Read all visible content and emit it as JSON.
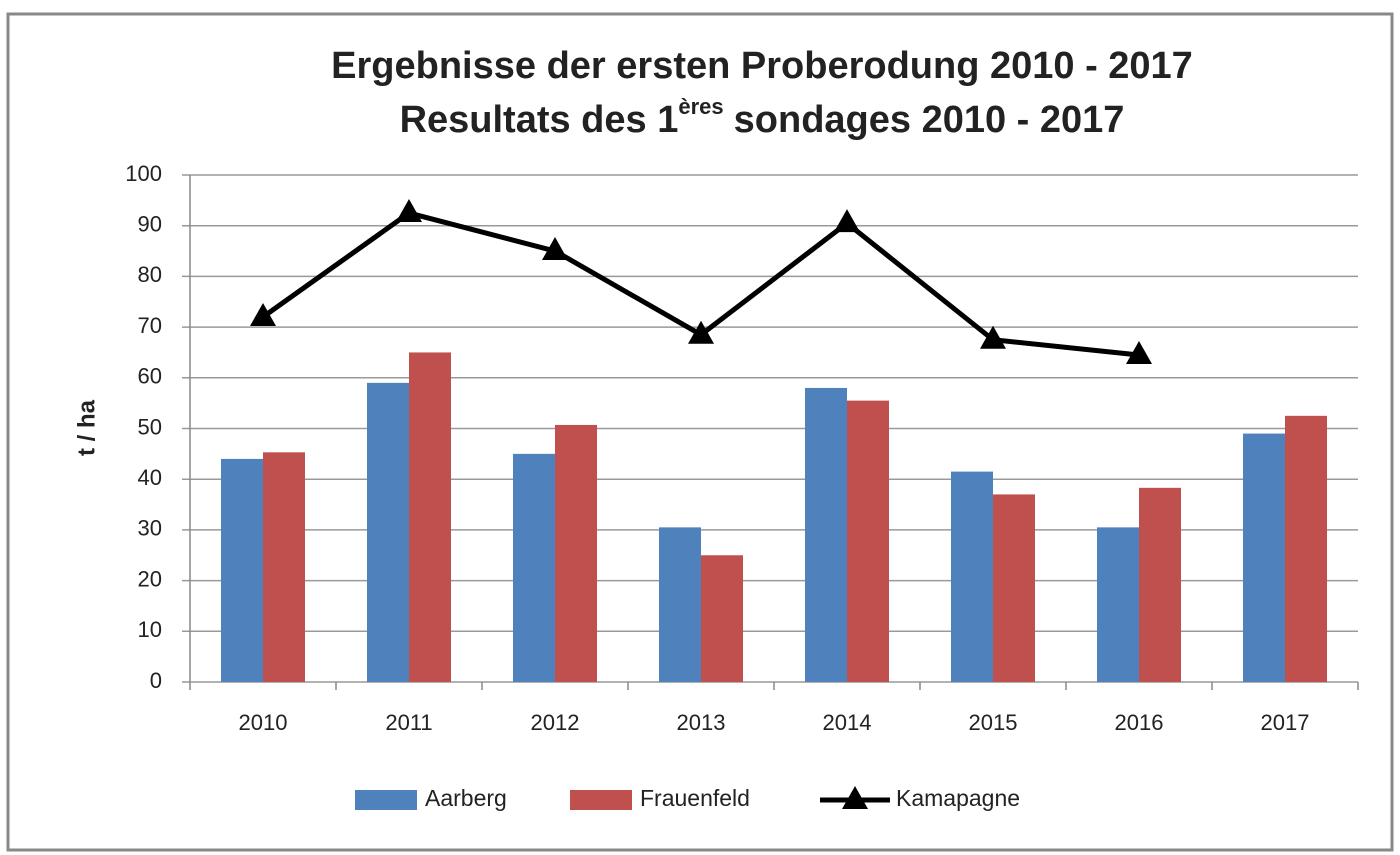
{
  "chart_data": {
    "type": "bar",
    "title": "Ergebnisse der ersten Proberodung 2010 - 2017",
    "subtitle": [
      "Resultats des 1",
      "ères",
      "sondages 2010 - 2017"
    ],
    "y_label": "t / ha",
    "categories": [
      "2010",
      "2011",
      "2012",
      "2013",
      "2014",
      "2015",
      "2016",
      "2017"
    ],
    "series": [
      {
        "name": "Aarberg",
        "type": "bar",
        "color": "#4f81bd",
        "values": [
          44,
          59,
          45,
          30.5,
          58,
          41.5,
          30.5,
          49
        ]
      },
      {
        "name": "Frauenfeld",
        "type": "bar",
        "color": "#c0504d",
        "values": [
          45.3,
          65,
          50.7,
          25,
          55.5,
          37,
          38.3,
          52.5
        ]
      },
      {
        "name": "Kamapagne",
        "type": "line",
        "color": "#000000",
        "values": [
          72,
          92.5,
          85,
          68.5,
          90.5,
          67.5,
          64.5,
          null
        ]
      }
    ],
    "ylim": [
      0,
      100
    ],
    "yticks": [
      0,
      10,
      20,
      30,
      40,
      50,
      60,
      70,
      80,
      90,
      100
    ],
    "grid": true,
    "legend": "bottom"
  }
}
